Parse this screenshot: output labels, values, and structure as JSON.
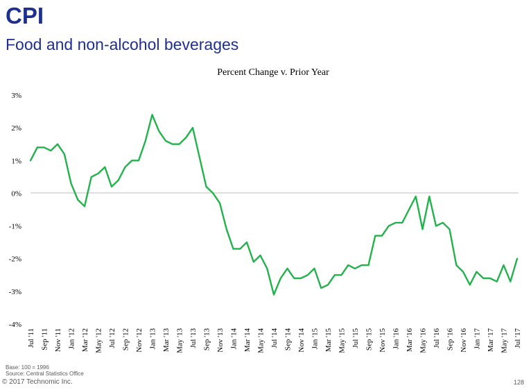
{
  "slide": {
    "title": "CPI",
    "subtitle": "Food and non-alcohol beverages",
    "title_color": "#1f2f8f",
    "footnote_base": "Base: 100 = 1996",
    "footnote_source": "Source: Central Statistics Office",
    "copyright": "© 2017 Technomic Inc.",
    "page_number": "128"
  },
  "chart_data": {
    "type": "line",
    "title": "Percent Change v. Prior Year",
    "xlabel": "",
    "ylabel": "",
    "ylim": [
      -4,
      3
    ],
    "yticks": [
      3,
      2,
      1,
      0,
      -1,
      -2,
      -3,
      -4
    ],
    "ytick_labels": [
      "3%",
      "2%",
      "1%",
      "0%",
      "-1%",
      "-2%",
      "-3%",
      "-4%"
    ],
    "grid": false,
    "legend": "none",
    "series_color": "#22b24c",
    "categories": [
      "Jul '11",
      "Aug '11",
      "Sep '11",
      "Oct '11",
      "Nov '11",
      "Dec '11",
      "Jan '12",
      "Feb '12",
      "Mar '12",
      "Apr '12",
      "May '12",
      "Jun '12",
      "Jul '12",
      "Aug '12",
      "Sep '12",
      "Oct '12",
      "Nov '12",
      "Dec '12",
      "Jan '13",
      "Feb '13",
      "Mar '13",
      "Apr '13",
      "May '13",
      "Jun '13",
      "Jul '13",
      "Aug '13",
      "Sep '13",
      "Oct '13",
      "Nov '13",
      "Dec '13",
      "Jan '14",
      "Feb '14",
      "Mar '14",
      "Apr '14",
      "May '14",
      "Jun '14",
      "Jul '14",
      "Aug '14",
      "Sep '14",
      "Oct '14",
      "Nov '14",
      "Dec '14",
      "Jan '15",
      "Feb '15",
      "Mar '15",
      "Apr '15",
      "May '15",
      "Jun '15",
      "Jul '15",
      "Aug '15",
      "Sep '15",
      "Oct '15",
      "Nov '15",
      "Dec '15",
      "Jan '16",
      "Feb '16",
      "Mar '16",
      "Apr '16",
      "May '16",
      "Jun '16",
      "Jul '16",
      "Aug '16",
      "Sep '16",
      "Oct '16",
      "Nov '16",
      "Dec '16",
      "Jan '17",
      "Feb '17",
      "Mar '17",
      "Apr '17",
      "May '17",
      "Jun '17",
      "Jul '17"
    ],
    "tick_labels": [
      "Jul '11",
      "Sep '11",
      "Nov '11",
      "Jan '12",
      "Mar '12",
      "May '12",
      "Jul '12",
      "Sep '12",
      "Nov '12",
      "Jan '13",
      "Mar '13",
      "May '13",
      "Jul '13",
      "Sep '13",
      "Nov '13",
      "Jan '14",
      "Mar '14",
      "May '14",
      "Jul '14",
      "Sep '14",
      "Nov '14",
      "Jan '15",
      "Mar '15",
      "May '15",
      "Jul '15",
      "Sep '15",
      "Nov '15",
      "Jan '16",
      "Mar '16",
      "May '16",
      "Jul '16",
      "Sep '16",
      "Nov '16",
      "Jan '17",
      "Mar '17",
      "May '17",
      "Jul '17"
    ],
    "series": [
      {
        "values": [
          1.0,
          1.4,
          1.4,
          1.3,
          1.5,
          1.2,
          0.3,
          -0.2,
          -0.4,
          0.5,
          0.6,
          0.8,
          0.2,
          0.4,
          0.8,
          1.0,
          1.0,
          1.6,
          2.4,
          1.9,
          1.6,
          1.5,
          1.5,
          1.7,
          2.0,
          1.1,
          0.2,
          0.0,
          -0.3,
          -1.1,
          -1.7,
          -1.7,
          -1.5,
          -2.1,
          -1.9,
          -2.3,
          -3.1,
          -2.6,
          -2.3,
          -2.6,
          -2.6,
          -2.5,
          -2.3,
          -2.9,
          -2.8,
          -2.5,
          -2.5,
          -2.2,
          -2.3,
          -2.2,
          -2.2,
          -1.3,
          -1.3,
          -1.0,
          -0.9,
          -0.9,
          -0.5,
          -0.1,
          -1.1,
          -0.1,
          -1.0,
          -0.9,
          -1.1,
          -2.2,
          -2.4,
          -2.8,
          -2.4,
          -2.6,
          -2.6,
          -2.7,
          -2.2,
          -2.7,
          -2.0
        ]
      }
    ]
  }
}
